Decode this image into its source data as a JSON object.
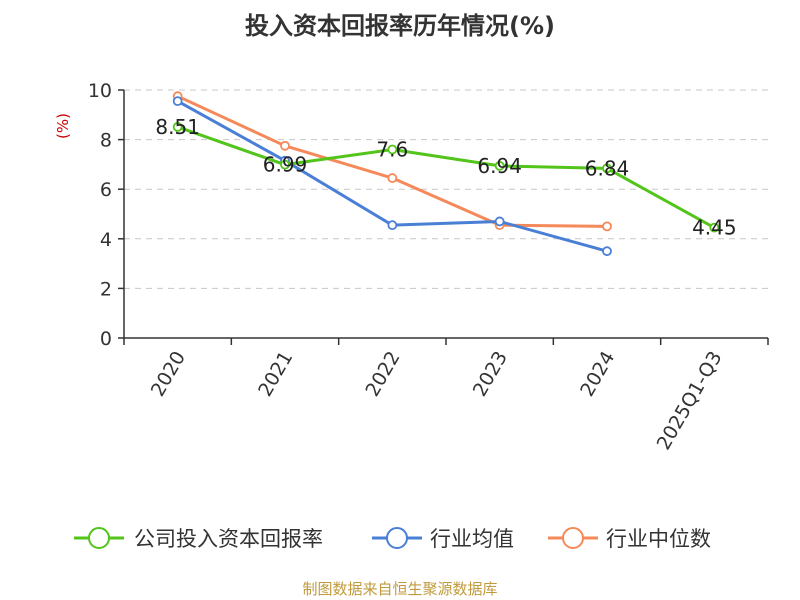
{
  "chart_data": {
    "type": "line",
    "title": "投入资本回报率历年情况(%)",
    "ylabel": "(%)",
    "xlabel": "",
    "categories": [
      "2020",
      "2021",
      "2022",
      "2023",
      "2024",
      "2025Q1-Q3"
    ],
    "ylim": [
      0,
      10
    ],
    "yticks": [
      0,
      2,
      4,
      6,
      8,
      10
    ],
    "grid": true,
    "legend_position": "bottom",
    "series": [
      {
        "name": "公司投入资本回报率",
        "color": "#52c41a",
        "values": [
          8.51,
          6.99,
          7.6,
          6.94,
          6.84,
          4.45
        ],
        "labels": [
          "8.51",
          "6.99",
          "7.6",
          "6.94",
          "6.84",
          "4.45"
        ]
      },
      {
        "name": "行业均值",
        "color": "#4a7fd6",
        "values": [
          9.55,
          7.15,
          4.55,
          4.7,
          3.5,
          null
        ],
        "labels": []
      },
      {
        "name": "行业中位数",
        "color": "#f5895a",
        "values": [
          9.75,
          7.75,
          6.45,
          4.55,
          4.5,
          null
        ],
        "labels": []
      }
    ]
  },
  "source": "制图数据来自恒生聚源数据库"
}
